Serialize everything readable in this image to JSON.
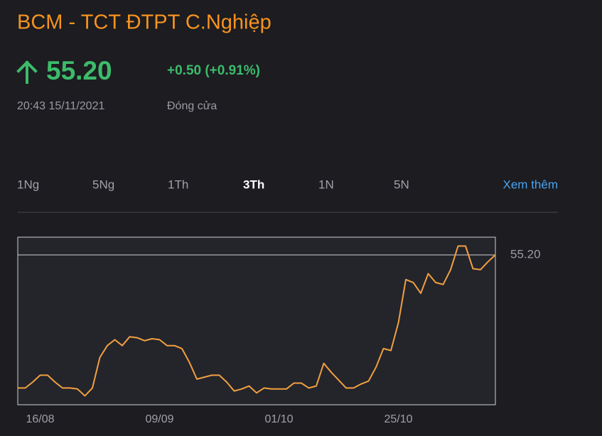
{
  "header": {
    "title": "BCM - TCT ĐTPT C.Nghiệp",
    "price": "55.20",
    "change": "+0.50 (+0.91%)",
    "timestamp": "20:43 15/11/2021",
    "status": "Đóng cửa"
  },
  "tabs": [
    "1Ng",
    "5Ng",
    "1Th",
    "3Th",
    "1N",
    "5N"
  ],
  "active_tab": 3,
  "more_link": "Xem thêm",
  "chart_data": {
    "type": "line",
    "categories": [
      null,
      null,
      null,
      "16/08",
      null,
      null,
      null,
      null,
      null,
      null,
      null,
      null,
      null,
      null,
      null,
      null,
      null,
      null,
      null,
      "09/09",
      null,
      null,
      null,
      null,
      null,
      null,
      null,
      null,
      null,
      null,
      null,
      null,
      null,
      null,
      null,
      "01/10",
      null,
      null,
      null,
      null,
      null,
      null,
      null,
      null,
      null,
      null,
      null,
      null,
      null,
      null,
      null,
      "25/10",
      null,
      null,
      null,
      null,
      null,
      null,
      null,
      null,
      null,
      null,
      null,
      null,
      null
    ],
    "series": [
      {
        "color": "#f0a040",
        "values": [
          41.7,
          41.7,
          42.3,
          43.0,
          43.0,
          42.3,
          41.7,
          41.7,
          41.6,
          40.9,
          41.7,
          44.8,
          46.0,
          46.6,
          46.0,
          46.9,
          46.8,
          46.5,
          46.7,
          46.6,
          46.0,
          46.0,
          45.7,
          44.3,
          42.6,
          42.8,
          43.0,
          43.0,
          42.3,
          41.4,
          41.6,
          41.9,
          41.2,
          41.7,
          41.6,
          41.6,
          41.6,
          42.2,
          42.2,
          41.7,
          41.9,
          44.2,
          43.3,
          42.5,
          41.7,
          41.7,
          42.1,
          42.4,
          43.8,
          45.7,
          45.5,
          48.3,
          52.7,
          52.4,
          51.3,
          53.3,
          52.4,
          52.2,
          53.7,
          56.1,
          56.1,
          53.8,
          53.7,
          54.5,
          55.2
        ]
      }
    ],
    "ylim": [
      40,
      57
    ],
    "yticks": [
      {
        "value": 55.2,
        "label": "55.20"
      }
    ]
  }
}
